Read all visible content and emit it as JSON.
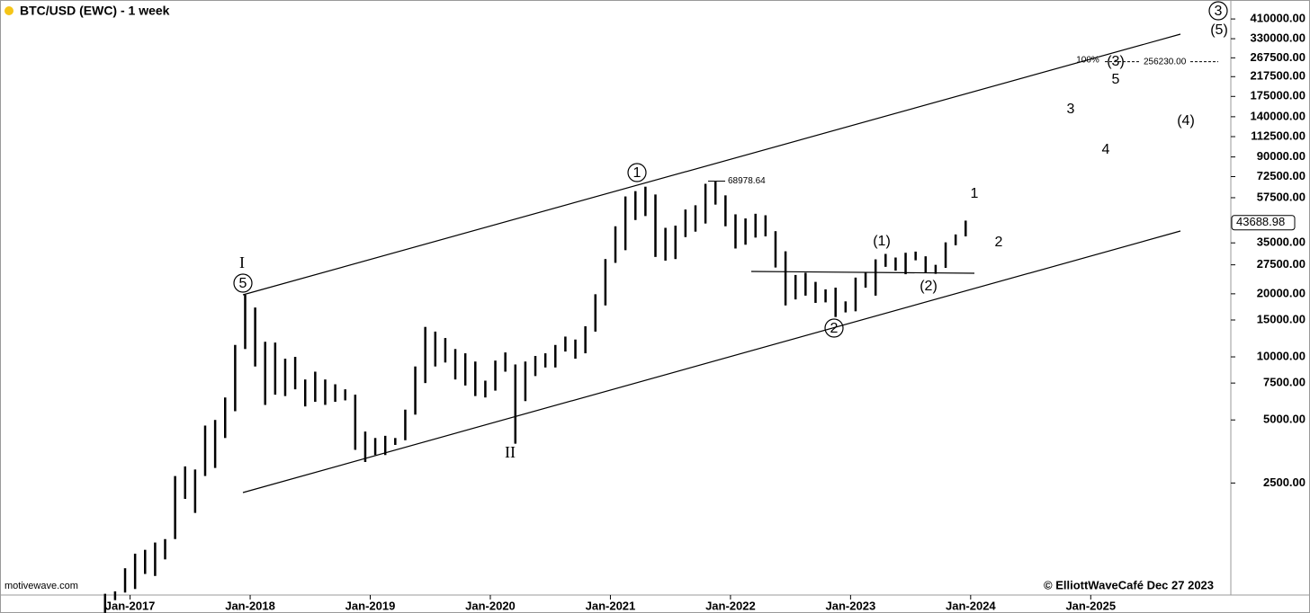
{
  "chart_data": {
    "type": "ohlc",
    "title": "BTC/USD (EWC) - 1 week",
    "source": "motivewave.com",
    "credit": "© ElliottWaveCafé Dec 27 2023",
    "color": "#000000",
    "log_scale": true,
    "x": [
      "2016-10",
      "2016-11",
      "2016-12",
      "2017-01",
      "2017-02",
      "2017-03",
      "2017-04",
      "2017-05",
      "2017-06",
      "2017-07",
      "2017-08",
      "2017-09",
      "2017-10",
      "2017-11",
      "2017-12",
      "2018-01",
      "2018-02",
      "2018-03",
      "2018-04",
      "2018-05",
      "2018-06",
      "2018-07",
      "2018-08",
      "2018-09",
      "2018-10",
      "2018-11",
      "2018-12",
      "2019-01",
      "2019-02",
      "2019-03",
      "2019-04",
      "2019-05",
      "2019-06",
      "2019-07",
      "2019-08",
      "2019-09",
      "2019-10",
      "2019-11",
      "2019-12",
      "2020-01",
      "2020-02",
      "2020-03",
      "2020-04",
      "2020-05",
      "2020-06",
      "2020-07",
      "2020-08",
      "2020-09",
      "2020-10",
      "2020-11",
      "2020-12",
      "2021-01",
      "2021-02",
      "2021-03",
      "2021-04",
      "2021-05",
      "2021-06",
      "2021-07",
      "2021-08",
      "2021-09",
      "2021-10",
      "2021-11",
      "2021-12",
      "2022-01",
      "2022-02",
      "2022-03",
      "2022-04",
      "2022-05",
      "2022-06",
      "2022-07",
      "2022-08",
      "2022-09",
      "2022-10",
      "2022-11",
      "2022-12",
      "2023-01",
      "2023-02",
      "2023-03",
      "2023-04",
      "2023-05",
      "2023-06",
      "2023-07",
      "2023-08",
      "2023-09",
      "2023-10",
      "2023-11",
      "2023-12"
    ],
    "high": [
      740,
      760,
      980,
      1150,
      1200,
      1300,
      1350,
      2700,
      3000,
      2900,
      4700,
      5000,
      6400,
      11400,
      19800,
      17200,
      11800,
      11700,
      9800,
      10000,
      7800,
      8500,
      7800,
      7400,
      7000,
      6600,
      4400,
      4100,
      4200,
      4100,
      5600,
      9000,
      13900,
      13200,
      12300,
      10900,
      10400,
      9500,
      7700,
      9600,
      10500,
      9200,
      9500,
      10100,
      10400,
      11400,
      12500,
      12100,
      14000,
      19900,
      29300,
      42000,
      58300,
      61800,
      64900,
      59600,
      41300,
      42300,
      50500,
      52900,
      67000,
      69000,
      59000,
      47900,
      45800,
      48200,
      47400,
      39800,
      31900,
      24600,
      25200,
      22800,
      21000,
      21400,
      18400,
      23900,
      25200,
      29200,
      31000,
      29800,
      31400,
      31800,
      30200,
      27500,
      35200,
      38400,
      44700
    ],
    "low": [
      600,
      690,
      750,
      780,
      920,
      900,
      1080,
      1350,
      2100,
      1800,
      2700,
      2950,
      4100,
      5500,
      10900,
      9000,
      5900,
      6600,
      6500,
      7000,
      5800,
      6100,
      5900,
      6100,
      6200,
      3600,
      3150,
      3400,
      3400,
      3800,
      4000,
      5300,
      7500,
      9000,
      9400,
      7800,
      7300,
      6500,
      6400,
      6900,
      8500,
      3850,
      6150,
      8100,
      8900,
      8900,
      10600,
      9800,
      10400,
      13200,
      17600,
      28100,
      32300,
      45000,
      47000,
      30000,
      28800,
      29300,
      37300,
      39600,
      43300,
      53300,
      42000,
      32900,
      34300,
      37100,
      37600,
      26700,
      17600,
      18800,
      19600,
      18100,
      18200,
      15500,
      16300,
      16500,
      21400,
      19600,
      26900,
      25800,
      24800,
      28900,
      25200,
      24900,
      26600,
      34100,
      37600
    ],
    "last_price": 43688.98,
    "peak_label": 68978.64,
    "target": {
      "value": 256230,
      "label": "256230.00"
    },
    "annotations": [
      "I",
      "5",
      "II",
      "1",
      "2",
      "(1)",
      "(2)",
      "1",
      "2",
      "3",
      "4",
      "5",
      "(3)",
      "(4)",
      "3",
      "(5)",
      "100%"
    ],
    "xlim": [
      "2015-12",
      "2026-03"
    ],
    "xticks": [
      {
        "value": "2017-01",
        "label": "Jan-2017"
      },
      {
        "value": "2018-01",
        "label": "Jan-2018"
      },
      {
        "value": "2019-01",
        "label": "Jan-2019"
      },
      {
        "value": "2020-01",
        "label": "Jan-2020"
      },
      {
        "value": "2021-01",
        "label": "Jan-2021"
      },
      {
        "value": "2022-01",
        "label": "Jan-2022"
      },
      {
        "value": "2023-01",
        "label": "Jan-2023"
      },
      {
        "value": "2024-01",
        "label": "Jan-2024"
      },
      {
        "value": "2025-01",
        "label": "Jan-2025"
      }
    ],
    "ylim": [
      730,
      505000
    ],
    "yticks": [
      {
        "value": 410000,
        "label": "410000.00"
      },
      {
        "value": 330000,
        "label": "330000.00"
      },
      {
        "value": 267500,
        "label": "267500.00"
      },
      {
        "value": 217500,
        "label": "217500.00"
      },
      {
        "value": 175000,
        "label": "175000.00"
      },
      {
        "value": 140000,
        "label": "140000.00"
      },
      {
        "value": 112500,
        "label": "112500.00"
      },
      {
        "value": 90000,
        "label": "90000.00"
      },
      {
        "value": 72500,
        "label": "72500.00"
      },
      {
        "value": 57500,
        "label": "57500.00"
      },
      {
        "value": 35000,
        "label": "35000.00"
      },
      {
        "value": 27500,
        "label": "27500.00"
      },
      {
        "value": 20000,
        "label": "20000.00"
      },
      {
        "value": 15000,
        "label": "15000.00"
      },
      {
        "value": 10000,
        "label": "10000.00"
      },
      {
        "value": 7500,
        "label": "7500.00"
      },
      {
        "value": 5000,
        "label": "5000.00"
      },
      {
        "value": 2500,
        "label": "2500.00"
      }
    ]
  }
}
